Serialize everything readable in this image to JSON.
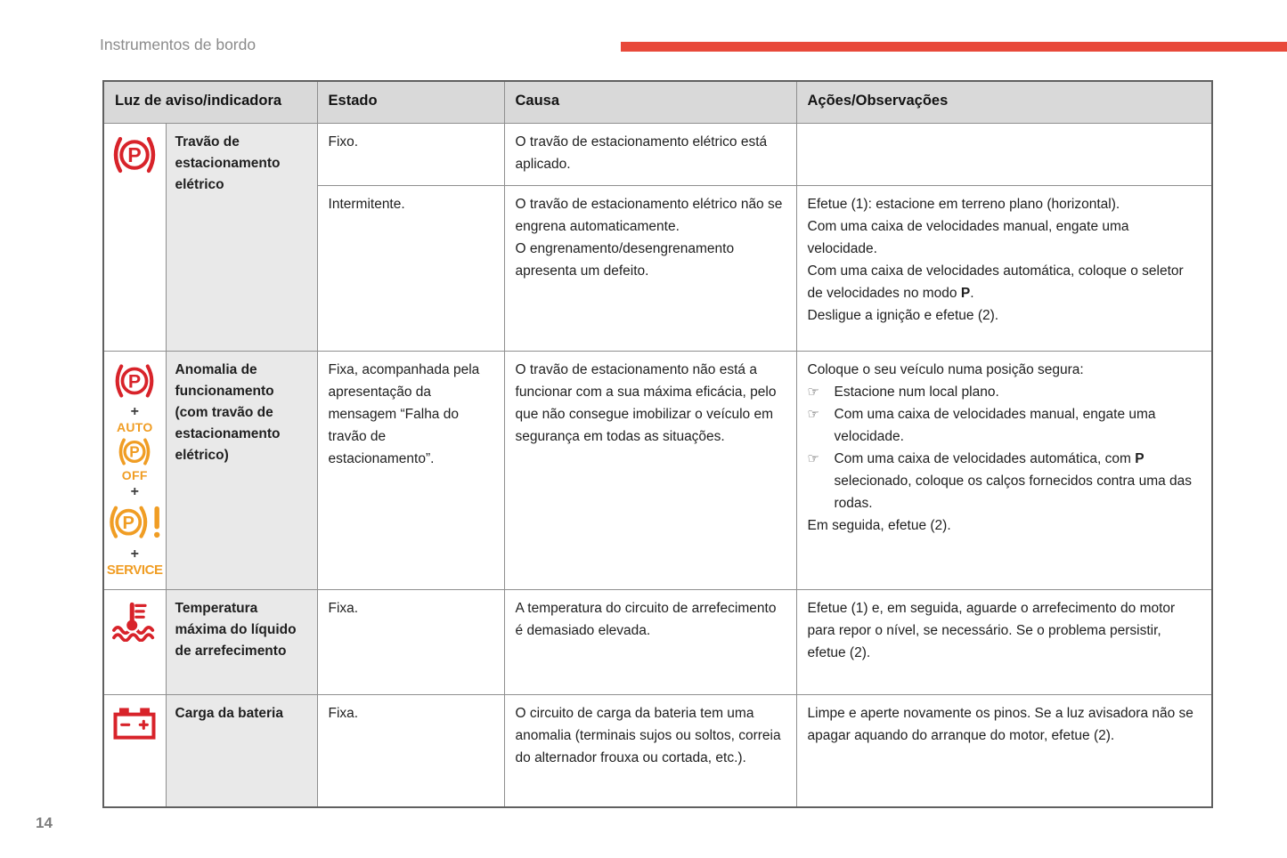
{
  "theme": {
    "accent": "#e8493a",
    "icon_red": "#d8232a",
    "icon_orange": "#f09d24",
    "header_bg": "#d9d9d9",
    "label_bg": "#e9e9e9"
  },
  "page": {
    "title": "Instrumentos de bordo",
    "number": "14"
  },
  "glyphs": {
    "plus": "+",
    "p_letter": "P",
    "auto": "AUTO",
    "off": "OFF",
    "service": "SERVICE",
    "bullet": "☞"
  },
  "table": {
    "headers": [
      "Luz de aviso/indicadora",
      "Estado",
      "Causa",
      "Ações/Observações"
    ],
    "rows": [
      {
        "label": "Travão de estacionamento elétrico",
        "icon": "parking-brake",
        "sub_rows": [
          {
            "estado": "Fixo.",
            "causa": [
              "O travão de estacionamento elétrico está aplicado."
            ],
            "acoes": []
          },
          {
            "estado": "Intermitente.",
            "causa": [
              "O travão de estacionamento elétrico não se engrena automaticamente.",
              "O engrenamento/desengrenamento apresenta um defeito."
            ],
            "acoes": [
              "Efetue (1): estacione em terreno plano (horizontal).",
              "Com uma caixa de velocidades manual, engate uma velocidade.",
              "Com uma caixa de velocidades automática, coloque o seletor de velocidades no modo **P**.",
              "Desligue a ignição e efetue (2)."
            ]
          }
        ]
      },
      {
        "label": "Anomalia de funcionamento (com travão de estacionamento elétrico)",
        "icons": [
          "parking-brake",
          "auto-parking-brake-off",
          "parking-brake-fault",
          "service"
        ],
        "estado": [
          "Fixa, acompanhada pela apresentação da mensagem “Falha do travão de estacionamento”."
        ],
        "causa": [
          "O travão de estacionamento não está a funcionar com a sua máxima eficácia, pelo que não consegue imobilizar o veículo em segurança em todas as situações."
        ],
        "acoes_intro": "Coloque o seu veículo numa posição segura:",
        "acoes_bullets": [
          "Estacione num local plano.",
          "Com uma caixa de velocidades manual, engate uma velocidade.",
          "Com uma caixa de velocidades automática, com **P** selecionado, coloque os calços fornecidos contra uma das rodas."
        ],
        "acoes_outro": "Em seguida, efetue (2)."
      },
      {
        "label": "Temperatura máxima do líquido de arrefecimento",
        "icon": "coolant-temperature",
        "estado": [
          "Fixa."
        ],
        "causa": [
          "A temperatura do circuito de arrefecimento é demasiado elevada."
        ],
        "acoes": [
          "Efetue (1) e, em seguida, aguarde o arrefecimento do motor para repor o nível, se necessário. Se o problema persistir, efetue (2)."
        ]
      },
      {
        "label": "Carga da bateria",
        "icon": "battery-charge",
        "estado": [
          "Fixa."
        ],
        "causa": [
          "O circuito de carga da bateria tem uma anomalia (terminais sujos ou soltos, correia do alternador frouxa ou cortada, etc.)."
        ],
        "acoes": [
          "Limpe e aperte novamente os pinos. Se a luz avisadora não se apagar aquando do arranque do motor, efetue (2)."
        ]
      }
    ]
  }
}
